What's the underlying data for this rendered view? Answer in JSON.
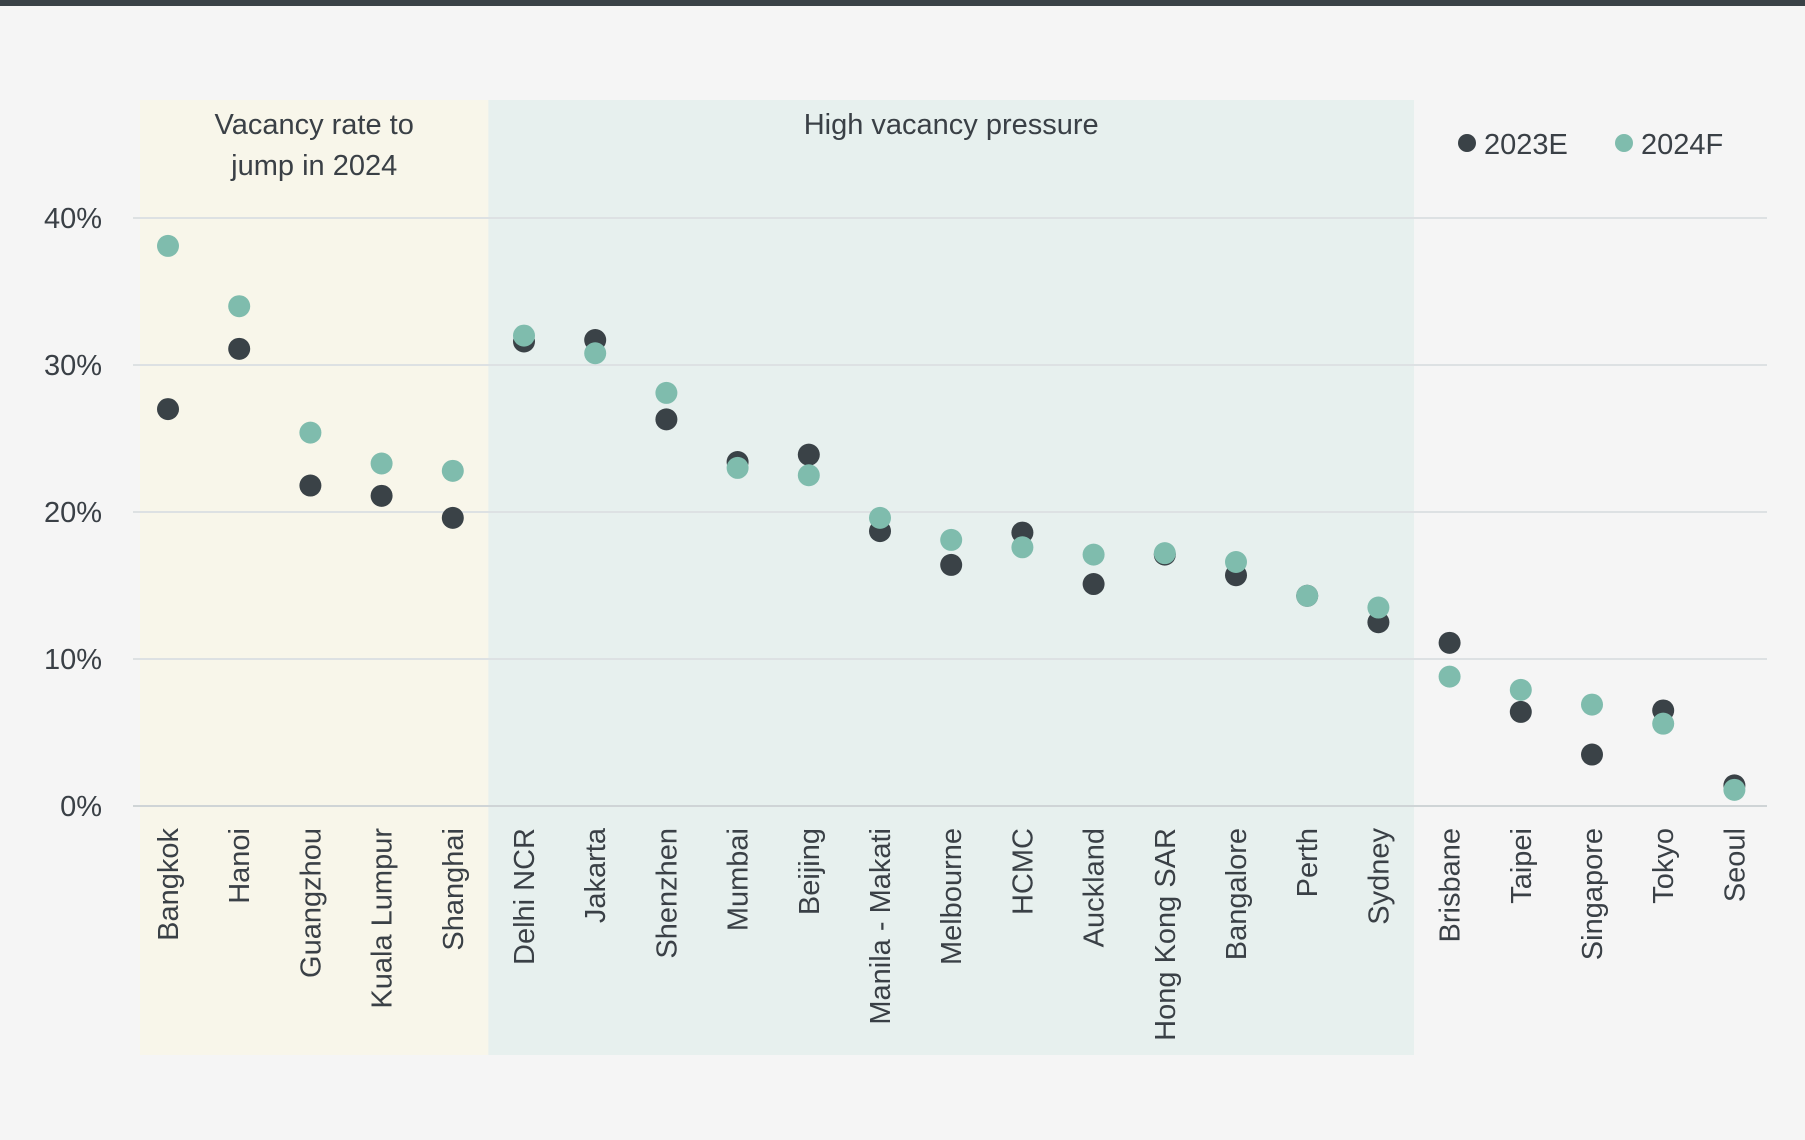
{
  "chart_data": {
    "type": "scatter",
    "categories": [
      "Bangkok",
      "Hanoi",
      "Guangzhou",
      "Kuala Lumpur",
      "Shanghai",
      "Delhi NCR",
      "Jakarta",
      "Shenzhen",
      "Mumbai",
      "Beijing",
      "Manila - Makati",
      "Melbourne",
      "HCMC",
      "Auckland",
      "Hong Kong SAR",
      "Bangalore",
      "Perth",
      "Sydney",
      "Brisbane",
      "Taipei",
      "Singapore",
      "Tokyo",
      "Seoul"
    ],
    "series": [
      {
        "name": "2023E",
        "color": "#3a4247",
        "values": [
          27.0,
          31.1,
          21.8,
          21.1,
          19.6,
          31.6,
          31.7,
          26.3,
          23.4,
          23.9,
          18.7,
          16.4,
          18.6,
          15.1,
          17.1,
          15.7,
          14.3,
          12.5,
          11.1,
          6.4,
          3.5,
          6.5,
          1.4
        ]
      },
      {
        "name": "2024F",
        "color": "#7fbcad",
        "values": [
          38.1,
          34.0,
          25.4,
          23.3,
          22.8,
          32.0,
          30.8,
          28.1,
          23.0,
          22.5,
          19.6,
          18.1,
          17.6,
          17.1,
          17.2,
          16.6,
          14.3,
          13.5,
          8.8,
          7.9,
          6.9,
          5.6,
          1.1
        ]
      }
    ],
    "ylim": [
      0,
      40
    ],
    "yticks": [
      0,
      10,
      20,
      30,
      40
    ],
    "ytick_labels": [
      "0%",
      "10%",
      "20%",
      "30%",
      "40%"
    ],
    "grid": true,
    "legend_position": "top-right",
    "regions": [
      {
        "label_lines": [
          "Vacancy rate to",
          "jump in 2024"
        ],
        "start": "Bangkok",
        "end": "Shanghai",
        "color": "#f8f6ea"
      },
      {
        "label_lines": [
          "High vacancy pressure"
        ],
        "start": "Delhi NCR",
        "end": "Sydney",
        "color": "#e7f0ee"
      }
    ],
    "xlabel": "",
    "ylabel": ""
  }
}
